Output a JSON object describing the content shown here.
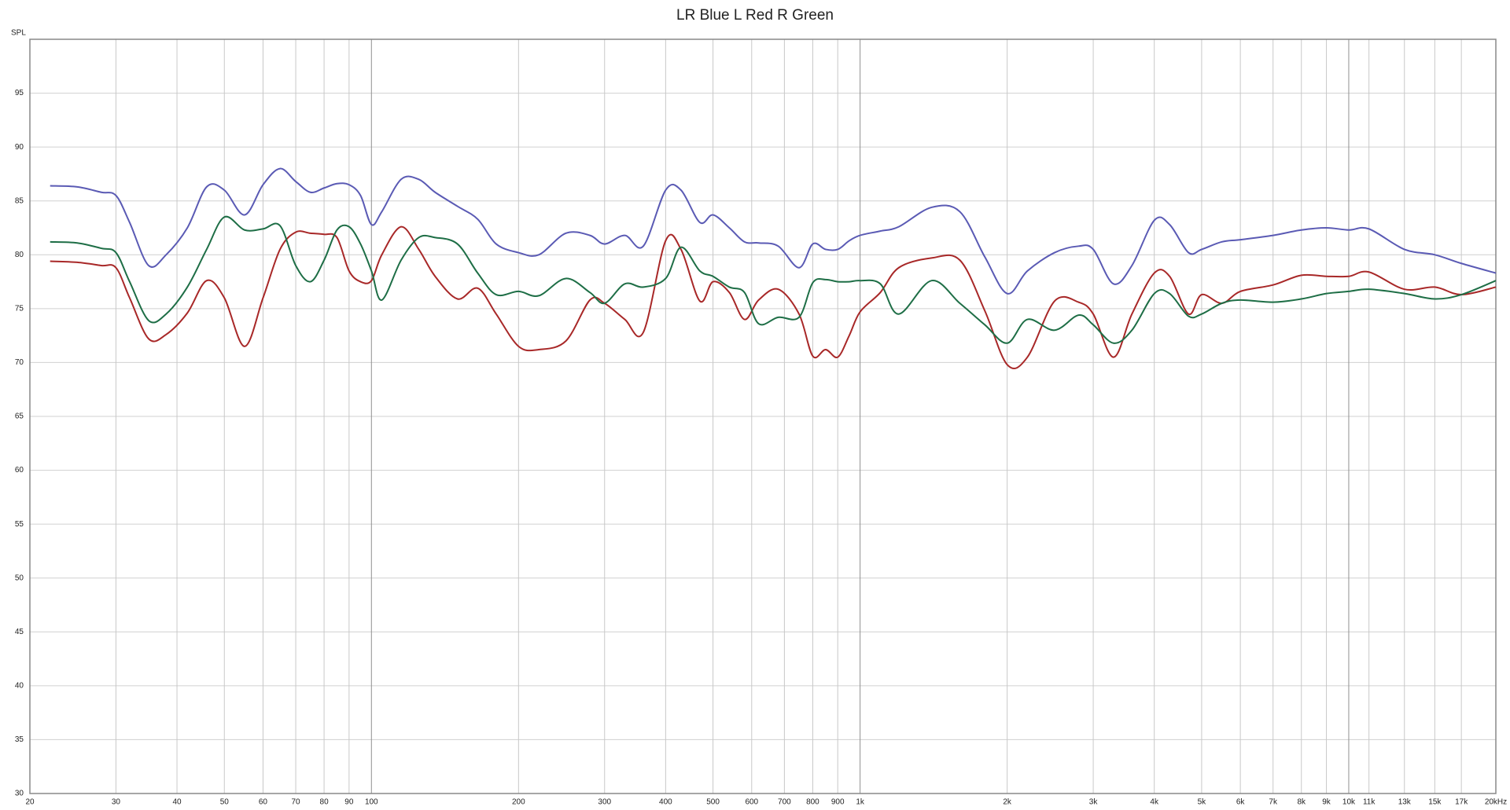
{
  "chart_data": {
    "type": "line",
    "title": "LR Blue L Red R Green",
    "y_label": "SPL",
    "x_scale": "log",
    "grid": true,
    "xlim": [
      20,
      20000
    ],
    "ylim": [
      30,
      100
    ],
    "yticks": [
      30,
      35,
      40,
      45,
      50,
      55,
      60,
      65,
      70,
      75,
      80,
      85,
      90,
      95
    ],
    "xticks": [
      20,
      30,
      40,
      50,
      60,
      70,
      80,
      90,
      100,
      200,
      300,
      400,
      500,
      600,
      700,
      800,
      900,
      {
        "value": 1000,
        "label": "1k"
      },
      {
        "value": 2000,
        "label": "2k"
      },
      {
        "value": 3000,
        "label": "3k"
      },
      {
        "value": 4000,
        "label": "4k"
      },
      {
        "value": 5000,
        "label": "5k"
      },
      {
        "value": 6000,
        "label": "6k"
      },
      {
        "value": 7000,
        "label": "7k"
      },
      {
        "value": 8000,
        "label": "8k"
      },
      {
        "value": 9000,
        "label": "9k"
      },
      {
        "value": 10000,
        "label": "10k"
      },
      {
        "value": 11000,
        "label": "11k"
      },
      {
        "value": 13000,
        "label": "13k"
      },
      {
        "value": 15000,
        "label": "15k"
      },
      {
        "value": 17000,
        "label": "17k"
      },
      {
        "value": 20000,
        "label": "20kHz"
      }
    ],
    "x": [
      22,
      25,
      28,
      30,
      32,
      35,
      38,
      42,
      46,
      50,
      55,
      60,
      65,
      70,
      75,
      80,
      85,
      90,
      95,
      100,
      105,
      115,
      125,
      135,
      150,
      165,
      180,
      200,
      220,
      250,
      280,
      300,
      330,
      360,
      400,
      430,
      470,
      500,
      540,
      580,
      620,
      680,
      750,
      800,
      850,
      900,
      950,
      1000,
      1100,
      1200,
      1400,
      1600,
      1800,
      2000,
      2200,
      2500,
      2800,
      3000,
      3300,
      3600,
      4000,
      4300,
      4700,
      5000,
      5500,
      6000,
      7000,
      8000,
      9000,
      10000,
      11000,
      13000,
      15000,
      17000,
      20000
    ],
    "series": [
      {
        "color": "#5a5ab4",
        "values": [
          86.4,
          86.3,
          85.8,
          85.5,
          83,
          79,
          80,
          82.5,
          86.3,
          86,
          83.7,
          86.5,
          88,
          86.8,
          85.8,
          86.2,
          86.6,
          86.5,
          85.5,
          82.8,
          84,
          87,
          87,
          85.8,
          84.5,
          83.3,
          81,
          80.2,
          80,
          82,
          81.8,
          81,
          81.8,
          80.8,
          86,
          86,
          83,
          83.7,
          82.5,
          81.2,
          81.1,
          80.8,
          78.8,
          81,
          80.5,
          80.5,
          81.3,
          81.8,
          82.2,
          82.6,
          84.4,
          84,
          79.8,
          76.4,
          78.5,
          80.2,
          80.8,
          80.5,
          77.3,
          79,
          83.2,
          82.8,
          80.2,
          80.5,
          81.2,
          81.4,
          81.8,
          82.3,
          82.5,
          82.3,
          82.4,
          80.5,
          80,
          79.2,
          78.3
        ]
      },
      {
        "color": "#a82828",
        "values": [
          79.4,
          79.3,
          79,
          78.8,
          76,
          72.2,
          72.6,
          74.6,
          77.6,
          76,
          71.5,
          76,
          80.5,
          82.1,
          82,
          81.9,
          81.6,
          78.5,
          77.5,
          77.6,
          80,
          82.6,
          80.5,
          78,
          75.9,
          76.9,
          74.5,
          71.5,
          71.2,
          72,
          75.8,
          75.5,
          74,
          72.8,
          81.3,
          80.5,
          75.7,
          77.5,
          76.5,
          74,
          75.8,
          76.8,
          74.5,
          70.6,
          71.2,
          70.5,
          72.5,
          74.7,
          76.5,
          78.8,
          79.7,
          79.5,
          74.8,
          69.8,
          70.5,
          75.7,
          75.6,
          74.5,
          70.5,
          74.5,
          78.3,
          78,
          74.5,
          76.3,
          75.5,
          76.6,
          77.2,
          78.1,
          78,
          78,
          78.4,
          76.8,
          77,
          76.3,
          77
        ]
      },
      {
        "color": "#1e6e46",
        "values": [
          81.2,
          81.1,
          80.6,
          80.2,
          77.5,
          73.9,
          74.5,
          77,
          80.5,
          83.5,
          82.3,
          82.4,
          82.7,
          79,
          77.5,
          79.5,
          82.3,
          82.6,
          81,
          78.5,
          75.8,
          79.5,
          81.6,
          81.6,
          81,
          78.3,
          76.3,
          76.6,
          76.2,
          77.8,
          76.5,
          75.5,
          77.3,
          77,
          77.8,
          80.7,
          78.5,
          78,
          77,
          76.5,
          73.6,
          74.2,
          74.2,
          77.4,
          77.7,
          77.5,
          77.5,
          77.6,
          77.3,
          74.5,
          77.6,
          75.5,
          73.5,
          71.8,
          74,
          73,
          74.4,
          73.5,
          71.8,
          73,
          76.4,
          76.4,
          74.3,
          74.5,
          75.5,
          75.8,
          75.6,
          75.9,
          76.4,
          76.6,
          76.8,
          76.4,
          75.9,
          76.3,
          77.6
        ]
      }
    ]
  }
}
